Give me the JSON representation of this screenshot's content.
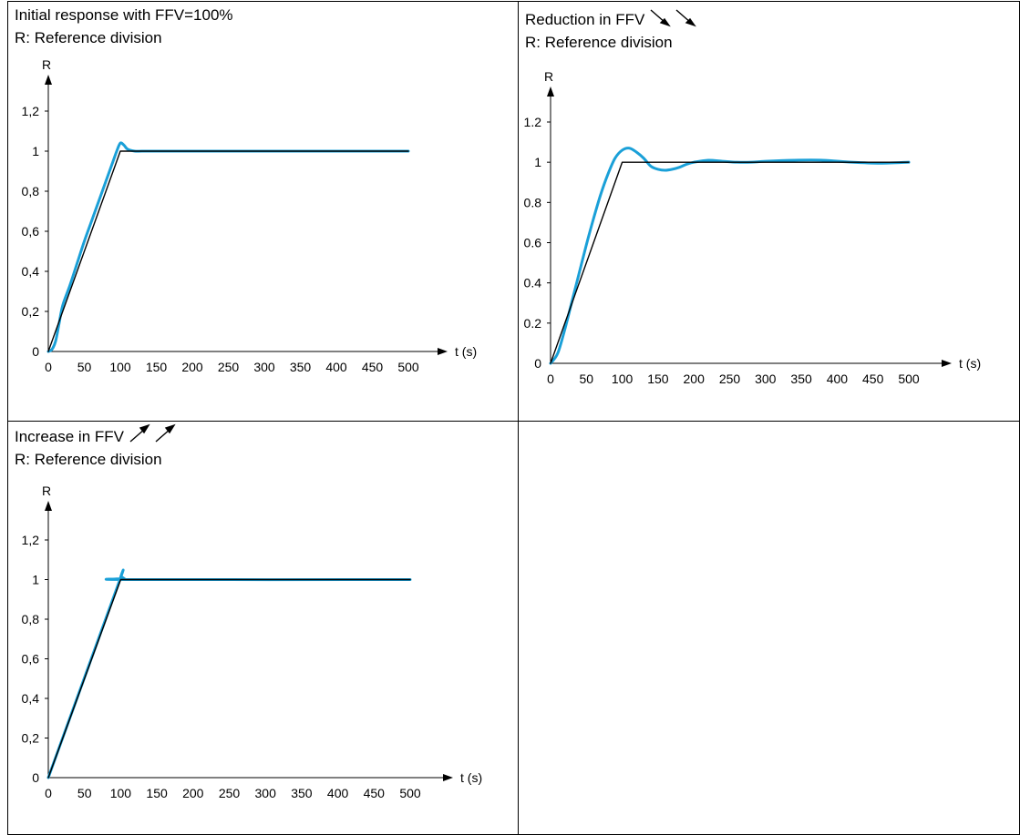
{
  "colors": {
    "response": "#1aa0d8",
    "reference": "#000000"
  },
  "panels": [
    {
      "title": "Initial response with FFV=100%",
      "subtitle": "R: Reference division",
      "arrow_icon": "",
      "empty": false
    },
    {
      "title": "Reduction in FFV",
      "subtitle": "R: Reference division",
      "arrow_icon": "down-right-arrow-icon",
      "empty": false
    },
    {
      "title": "Increase in FFV",
      "subtitle": "R: Reference division",
      "arrow_icon": "up-right-arrow-icon",
      "empty": false
    },
    {
      "title": "",
      "subtitle": "",
      "arrow_icon": "",
      "empty": true
    }
  ],
  "chart_data": [
    {
      "type": "line",
      "ylabel": "R",
      "xlabel": "t (s)",
      "xlim": [
        0,
        500
      ],
      "ylim": [
        0,
        1.2
      ],
      "xticks": [
        "0",
        "50",
        "100",
        "150",
        "200",
        "250",
        "300",
        "350",
        "400",
        "450",
        "500"
      ],
      "yticks": [
        "0",
        "0,2",
        "0,4",
        "0,6",
        "0,8",
        "1",
        "1,2"
      ],
      "series": [
        {
          "role": "reference",
          "x": [
            0,
            100,
            500
          ],
          "y": [
            0,
            1,
            1
          ]
        },
        {
          "role": "response",
          "x": [
            0,
            5,
            10,
            15,
            20,
            30,
            40,
            50,
            60,
            70,
            80,
            90,
            95,
            100,
            105,
            110,
            120,
            130,
            150,
            200,
            300,
            400,
            500
          ],
          "y": [
            0,
            0.01,
            0.05,
            0.14,
            0.23,
            0.33,
            0.44,
            0.55,
            0.65,
            0.75,
            0.85,
            0.95,
            1.0,
            1.04,
            1.03,
            1.01,
            1.0,
            1.0,
            1.0,
            1.0,
            1.0,
            1.0,
            1.0
          ]
        }
      ]
    },
    {
      "type": "line",
      "ylabel": "R",
      "xlabel": "t (s)",
      "xlim": [
        0,
        500
      ],
      "ylim": [
        0,
        1.2
      ],
      "xticks": [
        "0",
        "50",
        "100",
        "150",
        "200",
        "250",
        "300",
        "350",
        "400",
        "450",
        "500"
      ],
      "yticks": [
        "0",
        "0.2",
        "0.4",
        "0.6",
        "0.8",
        "1",
        "1.2"
      ],
      "series": [
        {
          "role": "reference",
          "x": [
            0,
            100,
            500
          ],
          "y": [
            0,
            1,
            1
          ]
        },
        {
          "role": "response",
          "x": [
            0,
            10,
            20,
            30,
            40,
            50,
            60,
            70,
            80,
            90,
            100,
            110,
            120,
            130,
            140,
            150,
            160,
            170,
            180,
            190,
            200,
            220,
            240,
            260,
            280,
            300,
            340,
            380,
            420,
            460,
            500
          ],
          "y": [
            0,
            0.05,
            0.17,
            0.31,
            0.45,
            0.59,
            0.72,
            0.84,
            0.94,
            1.02,
            1.06,
            1.07,
            1.05,
            1.02,
            0.98,
            0.965,
            0.96,
            0.965,
            0.975,
            0.99,
            1.0,
            1.01,
            1.005,
            1.0,
            1.0,
            1.005,
            1.01,
            1.01,
            1.0,
            0.995,
            1.0
          ]
        }
      ]
    },
    {
      "type": "line",
      "ylabel": "R",
      "xlabel": "t (s)",
      "xlim": [
        0,
        500
      ],
      "ylim": [
        0,
        1.2
      ],
      "xticks": [
        "0",
        "50",
        "100",
        "150",
        "200",
        "250",
        "300",
        "350",
        "400",
        "450",
        "500"
      ],
      "yticks": [
        "0",
        "0,2",
        "0,4",
        "0,6",
        "0,8",
        "1",
        "1,2"
      ],
      "series": [
        {
          "role": "reference",
          "x": [
            0,
            100,
            500
          ],
          "y": [
            0,
            1,
            1
          ]
        },
        {
          "role": "response",
          "x": [
            0,
            95,
            100,
            105,
            110,
            500
          ],
          "y": [
            0,
            0.96,
            1.01,
            1.005,
            1.0,
            1.0
          ]
        }
      ]
    }
  ]
}
